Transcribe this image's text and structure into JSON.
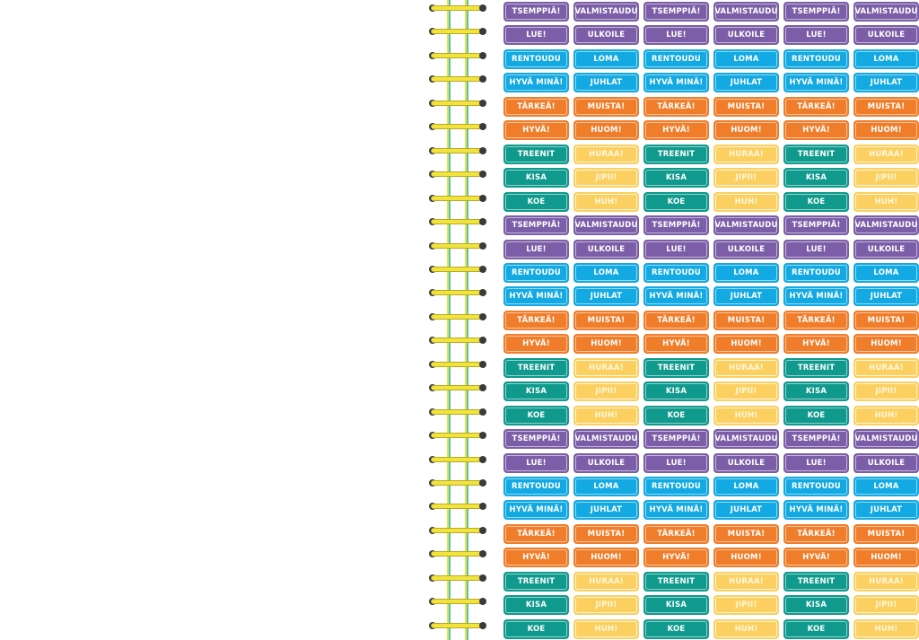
{
  "sticker_sheet": {
    "colors": {
      "purple": "#7b5ea7",
      "blue": "#13a9e2",
      "orange": "#f07d2a",
      "teal": "#0f9a8d",
      "yellow": "#fcd060",
      "yellow_text": "#fff7dd",
      "light_text": "#ffffff"
    },
    "pattern_rows": [
      {
        "a": {
          "text": "TSEMPPIÄ!",
          "color": "purple"
        },
        "b": {
          "text": "VALMISTAUDU",
          "color": "purple"
        }
      },
      {
        "a": {
          "text": "LUE!",
          "color": "purple"
        },
        "b": {
          "text": "ULKOILE",
          "color": "purple"
        }
      },
      {
        "a": {
          "text": "RENTOUDU",
          "color": "blue"
        },
        "b": {
          "text": "LOMA",
          "color": "blue"
        }
      },
      {
        "a": {
          "text": "HYVÄ MINÄ!",
          "color": "blue"
        },
        "b": {
          "text": "JUHLAT",
          "color": "blue"
        }
      },
      {
        "a": {
          "text": "TÄRKEÄ!",
          "color": "orange"
        },
        "b": {
          "text": "MUISTA!",
          "color": "orange"
        }
      },
      {
        "a": {
          "text": "HYVÄ!",
          "color": "orange"
        },
        "b": {
          "text": "HUOM!",
          "color": "orange"
        }
      },
      {
        "a": {
          "text": "TREENIT",
          "color": "teal"
        },
        "b": {
          "text": "HURAA!",
          "color": "yellow"
        }
      },
      {
        "a": {
          "text": "KISA",
          "color": "teal"
        },
        "b": {
          "text": "JIPII!",
          "color": "yellow"
        }
      },
      {
        "a": {
          "text": "KOE",
          "color": "teal"
        },
        "b": {
          "text": "HUH!",
          "color": "yellow"
        }
      }
    ],
    "block_repeats": 3,
    "pair_repeats": 3
  }
}
